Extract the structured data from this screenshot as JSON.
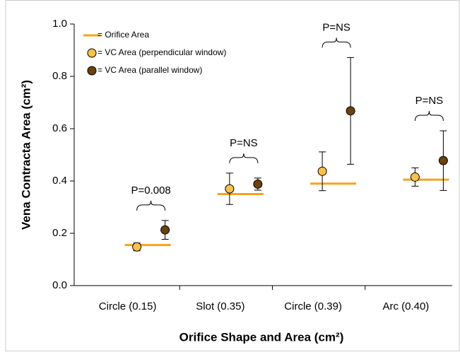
{
  "chart_data": {
    "type": "errorbar",
    "xlabel": "Orifice Shape and Area (cm²)",
    "ylabel": "Vena Contracta Area (cm²)",
    "categories": [
      "Circle (0.15)",
      "Slot (0.35)",
      "Circle (0.39)",
      "Arc (0.40)"
    ],
    "series": [
      {
        "name": "= Orifice Area",
        "marker": "line",
        "color": "#f7a21b",
        "values": [
          0.155,
          0.35,
          0.39,
          0.405
        ]
      },
      {
        "name": "= VC Area (perpendicular window)",
        "marker": "circle",
        "color": "#f9c04a",
        "values": [
          0.148,
          0.37,
          0.437,
          0.415
        ],
        "errors": [
          0.015,
          0.06,
          0.074,
          0.035
        ]
      },
      {
        "name": "= VC Area (parallel window)",
        "marker": "circle",
        "color": "#6b4110",
        "values": [
          0.213,
          0.388,
          0.668,
          0.478
        ],
        "errors": [
          0.036,
          0.023,
          0.204,
          0.114
        ]
      }
    ],
    "annotations": [
      "P=0.008",
      "P=NS",
      "P=NS",
      "P=NS"
    ],
    "ylim": [
      0,
      1
    ],
    "yticks": [
      {
        "value": 0,
        "label": "0.0"
      },
      {
        "value": 0.2,
        "label": "0.2"
      },
      {
        "value": 0.4,
        "label": "0.4"
      },
      {
        "value": 0.6,
        "label": "0.6"
      },
      {
        "value": 0.8,
        "label": "0.8"
      },
      {
        "value": 1,
        "label": "1.0"
      }
    ],
    "legend": "upper left"
  }
}
